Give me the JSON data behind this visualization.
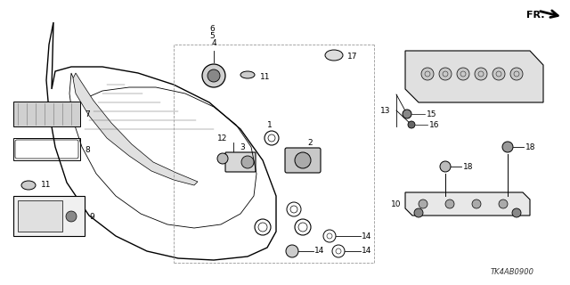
{
  "bg_color": "#ffffff",
  "diagram_code": "TK4AB0900",
  "fr_label": "FR.",
  "line_color": "#000000",
  "gray_color": "#888888",
  "light_gray": "#cccccc",
  "dashed_color": "#aaaaaa"
}
